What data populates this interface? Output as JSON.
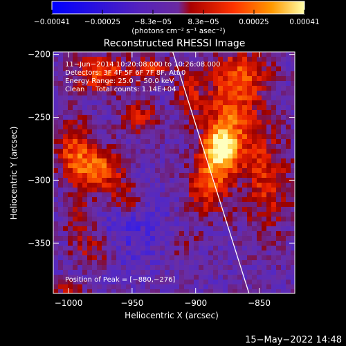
{
  "chart_data": {
    "type": "heatmap",
    "title": "Reconstructed RHESSI Image",
    "xlabel": "Heliocentric X (arcsec)",
    "ylabel": "Heliocentric Y (arcsec)",
    "xlim": [
      -1012,
      -822
    ],
    "ylim": [
      -390,
      -198
    ],
    "x_ticks": [
      -1000,
      -950,
      -900,
      -850
    ],
    "x_tick_labels": [
      "−1000",
      "−950",
      "−900",
      "−850"
    ],
    "y_ticks": [
      -200,
      -250,
      -300,
      -350
    ],
    "y_tick_labels": [
      "−200",
      "−250",
      "−300",
      "−350"
    ],
    "colorbar": {
      "range": [
        -0.00041,
        0.00041
      ],
      "tick_labels": [
        "−0.00041",
        "−0.00025",
        "−8.3e−05",
        "8.3e−05",
        "0.00025",
        "0.00041"
      ],
      "unit_label": "(photons cm⁻² s⁻¹ asec⁻²)",
      "colors": [
        "#0000ff",
        "#5522bb",
        "#7733aa",
        "#aa0000",
        "#ff3300",
        "#ff9900",
        "#ffffaa"
      ]
    },
    "annotations": [
      "11−Jun−2014 10:20:08.000 to 10:26:08.000",
      "Detectors: 3F 4F 5F 6F 7F 8F, Att 0",
      "Energy Range: 25.0 − 50.0 keV",
      "Clean     Total counts: 1.14E+04"
    ],
    "peak_label": "Position of Peak = [−880,−276]",
    "peak": [
      -880,
      -276
    ],
    "limb_line": [
      [
        -918,
        -198
      ],
      [
        -858,
        -390
      ]
    ]
  },
  "footer_timestamp": "15−May−2022 14:48"
}
